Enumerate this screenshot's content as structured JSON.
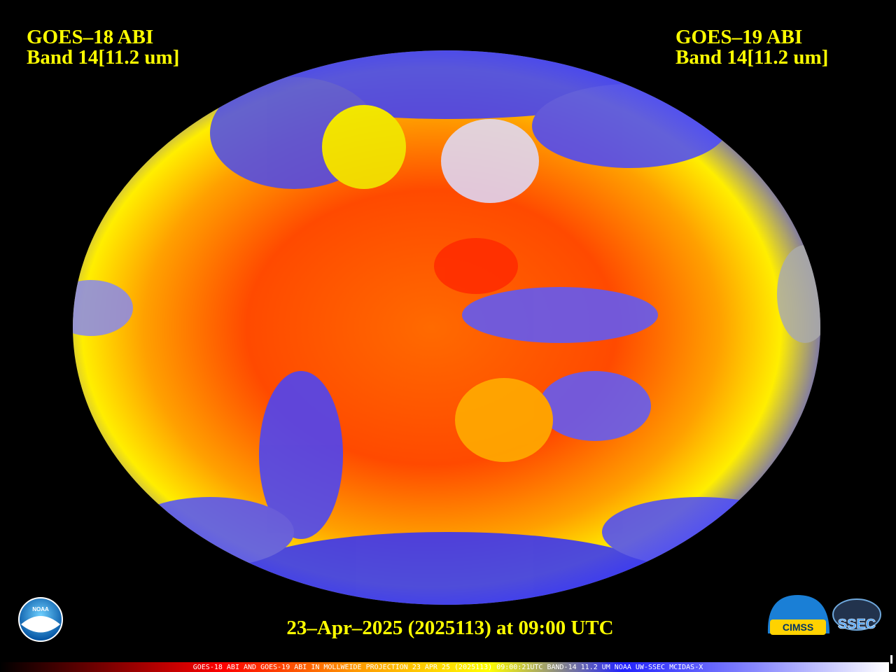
{
  "header": {
    "left": {
      "satellite": "GOES–18 ABI",
      "band": "Band 14[11.2 um]"
    },
    "right": {
      "satellite": "GOES–19 ABI",
      "band": "Band 14[11.2 um]"
    }
  },
  "timestamp": "23–Apr–2025 (2025113) at 09:00 UTC",
  "footer": "GOES-18 ABI AND GOES-19 ABI IN MOLLWEIDE PROJECTION 23 APR 25 (2025113) 09:00:21UTC BAND-14 11.2 UM NOAA UW-SSEC MCIDAS-X",
  "logos": {
    "noaa": "NOAA",
    "cimss": "CIMSS",
    "ssec": "SSEC"
  }
}
